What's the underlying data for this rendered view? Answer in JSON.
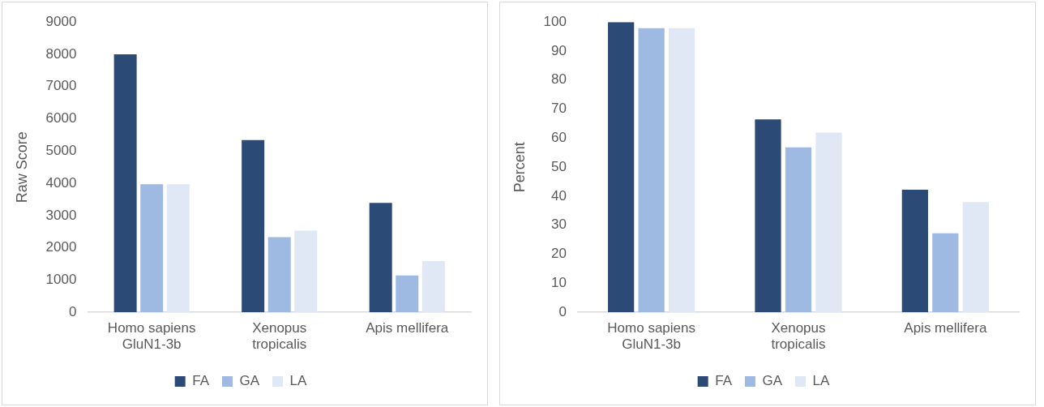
{
  "chart_data": [
    {
      "type": "bar",
      "ylabel": "Raw Score",
      "categories": [
        "Homo sapiens GluN1-3b",
        "Xenopus tropicalis",
        "Apis mellifera"
      ],
      "series": [
        {
          "name": "FA",
          "color": "#2c4a76",
          "values": [
            8000,
            5340,
            3390
          ]
        },
        {
          "name": "GA",
          "color": "#9fbae2",
          "values": [
            3970,
            2330,
            1140
          ]
        },
        {
          "name": "LA",
          "color": "#e0e7f5",
          "values": [
            3970,
            2530,
            1590
          ]
        }
      ],
      "ylim": [
        0,
        9000
      ],
      "yticks": [
        0,
        1000,
        2000,
        3000,
        4000,
        5000,
        6000,
        7000,
        8000,
        9000
      ],
      "grid": false,
      "legend": "bottom"
    },
    {
      "type": "bar",
      "ylabel": "Percent",
      "categories": [
        "Homo sapiens GluN1-3b",
        "Xenopus tropicalis",
        "Apis mellifera"
      ],
      "series": [
        {
          "name": "FA",
          "color": "#2c4a76",
          "values": [
            100,
            66.5,
            42.2
          ]
        },
        {
          "name": "GA",
          "color": "#9fbae2",
          "values": [
            97.9,
            56.8,
            27.2
          ]
        },
        {
          "name": "LA",
          "color": "#e0e7f5",
          "values": [
            97.9,
            61.9,
            38
          ]
        }
      ],
      "ylim": [
        0,
        100
      ],
      "yticks": [
        0,
        10,
        20,
        30,
        40,
        50,
        60,
        70,
        80,
        90,
        100
      ],
      "grid": false,
      "legend": "bottom"
    }
  ]
}
